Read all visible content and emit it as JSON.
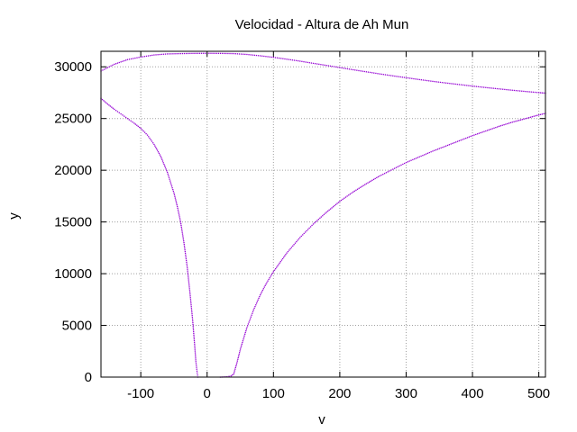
{
  "chart_data": {
    "type": "scatter",
    "title": "Velocidad - Altura de Ah Mun",
    "xlabel": "v",
    "ylabel": "y",
    "xlim": [
      -160,
      510
    ],
    "ylim": [
      0,
      31500
    ],
    "x_ticks": [
      -100,
      0,
      100,
      200,
      300,
      400,
      500
    ],
    "y_ticks": [
      0,
      5000,
      10000,
      15000,
      20000,
      25000,
      30000
    ],
    "x_tick_labels": [
      "-100",
      "0",
      "100",
      "200",
      "300",
      "400",
      "500"
    ],
    "y_tick_labels": [
      "0",
      "5000",
      "10000",
      "15000",
      "20000",
      "25000",
      "30000"
    ],
    "grid": true,
    "series_color": "#9400d3",
    "series": [
      {
        "name": "",
        "points": [
          [
            -160,
            29600
          ],
          [
            -140,
            30250
          ],
          [
            -120,
            30700
          ],
          [
            -100,
            30950
          ],
          [
            -80,
            31150
          ],
          [
            -60,
            31250
          ],
          [
            -40,
            31280
          ],
          [
            -20,
            31300
          ],
          [
            0,
            31310
          ],
          [
            20,
            31300
          ],
          [
            40,
            31280
          ],
          [
            60,
            31200
          ],
          [
            80,
            31070
          ],
          [
            100,
            30920
          ],
          [
            120,
            30740
          ],
          [
            140,
            30550
          ],
          [
            160,
            30340
          ],
          [
            180,
            30140
          ],
          [
            200,
            29930
          ],
          [
            220,
            29720
          ],
          [
            240,
            29520
          ],
          [
            260,
            29320
          ],
          [
            280,
            29130
          ],
          [
            300,
            28950
          ],
          [
            320,
            28770
          ],
          [
            340,
            28600
          ],
          [
            360,
            28440
          ],
          [
            380,
            28290
          ],
          [
            400,
            28140
          ],
          [
            420,
            28000
          ],
          [
            440,
            27870
          ],
          [
            460,
            27740
          ],
          [
            480,
            27620
          ],
          [
            500,
            27510
          ],
          [
            510,
            27460
          ]
        ]
      },
      {
        "name": "",
        "points": [
          [
            -160,
            26950
          ],
          [
            -150,
            26400
          ],
          [
            -140,
            25900
          ],
          [
            -130,
            25450
          ],
          [
            -120,
            25000
          ],
          [
            -110,
            24550
          ],
          [
            -100,
            24050
          ],
          [
            -90,
            23400
          ],
          [
            -80,
            22500
          ],
          [
            -70,
            21350
          ],
          [
            -60,
            19800
          ],
          [
            -50,
            17800
          ],
          [
            -45,
            16500
          ],
          [
            -40,
            15000
          ],
          [
            -35,
            13000
          ],
          [
            -30,
            10600
          ],
          [
            -26,
            8200
          ],
          [
            -22,
            5600
          ],
          [
            -19,
            3200
          ],
          [
            -17,
            1500
          ],
          [
            -15,
            400
          ],
          [
            -14,
            0
          ]
        ]
      },
      {
        "name": "",
        "points": [
          [
            20,
            0
          ],
          [
            30,
            30
          ],
          [
            36,
            120
          ],
          [
            40,
            300
          ],
          [
            45,
            1400
          ],
          [
            50,
            2700
          ],
          [
            60,
            4800
          ],
          [
            70,
            6500
          ],
          [
            80,
            7950
          ],
          [
            90,
            9150
          ],
          [
            100,
            10200
          ],
          [
            120,
            12000
          ],
          [
            140,
            13500
          ],
          [
            160,
            14800
          ],
          [
            180,
            15950
          ],
          [
            200,
            17000
          ],
          [
            220,
            17900
          ],
          [
            240,
            18700
          ],
          [
            260,
            19450
          ],
          [
            280,
            20100
          ],
          [
            300,
            20750
          ],
          [
            320,
            21300
          ],
          [
            340,
            21850
          ],
          [
            360,
            22350
          ],
          [
            380,
            22850
          ],
          [
            400,
            23350
          ],
          [
            420,
            23800
          ],
          [
            440,
            24250
          ],
          [
            460,
            24650
          ],
          [
            480,
            25000
          ],
          [
            500,
            25350
          ],
          [
            510,
            25500
          ]
        ]
      }
    ]
  }
}
